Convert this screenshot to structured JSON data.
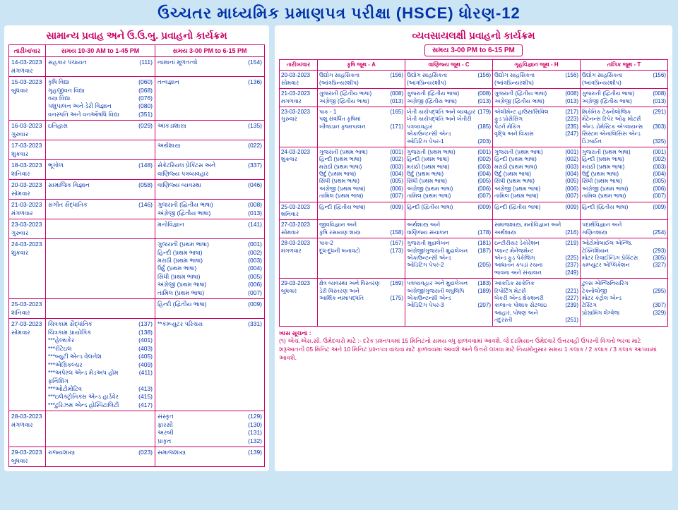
{
  "header": "ઉચ્ચતર માધ્યમિક પ્રમાણપત્ર પરીક્ષા (HSCE) ધોરણ-12",
  "left": {
    "title": "સામાન્ય પ્રવાહ અને ઉ.ઉ.બુ. પ્રવાહનો કાર્યક્રમ",
    "cols": [
      "તારીખ/વાર",
      "સમય 10-30 AM to 1-45 PM",
      "સમય 3-00 PM to 6-15 PM"
    ],
    "rows": [
      {
        "d": "14-03-2023\nમંગળવાર",
        "m": [
          [
            "સહકાર પંચાયત",
            "(111)"
          ]
        ],
        "a": [
          [
            "નામાનાં મૂળતત્વો",
            "(154)"
          ]
        ]
      },
      {
        "d": "15-03-2023\nબુધવાર",
        "m": [
          [
            "કૃષિ વિદ્યા",
            "(060)"
          ],
          [
            "ગૃહજીવન વિદ્યા",
            "(068)"
          ],
          [
            "વસ્ત્ર વિદ્યા",
            "(076)"
          ],
          [
            "પશુપાલન અને ડેરી વિજ્ઞાન",
            "(080)"
          ],
          [
            "વનસ્પતિ અને વનઔષધિ વિદ્યા",
            "(351)"
          ]
        ],
        "a": [
          [
            "તત્વજ્ઞાન",
            "(136)"
          ]
        ]
      },
      {
        "d": "16-03-2023\nગુરુવાર",
        "m": [
          [
            "ઇતિહાસ",
            "(029)"
          ]
        ],
        "a": [
          [
            "આંકડાશાસ્ત્ર",
            "(135)"
          ]
        ]
      },
      {
        "d": "17-03-2023\nશુક્રવાર",
        "m": [],
        "a": [
          [
            "અર્થશાસ્ત્ર",
            "(022)"
          ]
        ]
      },
      {
        "d": "18-03-2023\nશનિવાર",
        "m": [
          [
            "ભૂગોળ",
            "(148)"
          ]
        ],
        "a": [
          [
            "સેક્રેટરિયલ પ્રેક્ટિસ અને",
            "(337)"
          ],
          [
            "વાણિજ્ય પત્રવ્યવહાર",
            ""
          ]
        ]
      },
      {
        "d": "20-03-2023\nસોમવાર",
        "m": [
          [
            "સામાજિક વિજ્ઞાન",
            "(058)"
          ]
        ],
        "a": [
          [
            "વાણિજ્ય વ્યવસ્થા",
            "(046)"
          ]
        ]
      },
      {
        "d": "21-03-2023\nમંગળવાર",
        "m": [
          [
            "સંગીત સૈદ્ધાંતિક",
            "(146)"
          ]
        ],
        "a": [
          [
            "ગુજરાતી (દ્વિતીય ભાષા)",
            "(008)"
          ],
          [
            "અંગ્રેજી (દ્વિતીય ભાષા)",
            "(013)"
          ]
        ]
      },
      {
        "d": "23-03-2023\nગુરુવાર",
        "m": [],
        "a": [
          [
            "મનોવિજ્ઞાન",
            "(141)"
          ]
        ]
      },
      {
        "d": "24-03-2023\nશુક્રવાર",
        "m": [],
        "a": [
          [
            "ગુજરાતી  (પ્રથમ ભાષા)",
            "(001)"
          ],
          [
            "હિન્દી    (પ્રથમ ભાષા)",
            "(002)"
          ],
          [
            "મરાઠી    (પ્રથમ ભાષા)",
            "(003)"
          ],
          [
            "ઉર્દુ      (પ્રથમ ભાષા)",
            "(004)"
          ],
          [
            "સિંધી    (પ્રથમ ભાષા)",
            "(005)"
          ],
          [
            "અંગ્રેજી   (પ્રથમ ભાષા)",
            "(006)"
          ],
          [
            "તામિલ   (પ્રથમ ભાષા)",
            "(007)"
          ]
        ]
      },
      {
        "d": "25-03-2023\nશનિવાર",
        "m": [],
        "a": [
          [
            "હિન્દી    (દ્વિતીય ભાષા)",
            "(009)"
          ]
        ]
      },
      {
        "d": "27-03-2023\nસોમવાર",
        "m": [
          [
            "ચિત્રકામ સૈદ્ધાંતિક",
            "(137)"
          ],
          [
            "ચિત્રકામ પ્રાયોગિક",
            "(138)"
          ],
          [
            "***હેલ્થકેર",
            "(401)"
          ],
          [
            "***રીટેઇલ",
            "(403)"
          ],
          [
            "***બ્યુટી એન્ડ વેલનેશ",
            "(405)"
          ],
          [
            "***એગ્રિકલ્ચર",
            "(409)"
          ],
          [
            "***અપેરલ એન્ડ મેડઅપ હોમ ફર્નિશિંગ",
            "(411)"
          ],
          [
            "***ઓટોમોટિવ",
            "(413)"
          ],
          [
            "***ઇલેક્ટ્રોનિક્સ એન્ડ હાર્ડવેર",
            "(415)"
          ],
          [
            "***ટુરિઝમ એન્ડ હોસ્પિટાલિટી",
            "(417)"
          ]
        ],
        "a": [
          [
            "**કમ્પ્યુટર પરિચય",
            "(331)"
          ]
        ]
      },
      {
        "d": "28-03-2023\nમંગળવાર",
        "m": [],
        "a": [
          [
            "સંસ્કૃત",
            "(129)"
          ],
          [
            "ફારસી",
            "(130)"
          ],
          [
            "અરબી",
            "(131)"
          ],
          [
            "પ્રાકૃત",
            "(132)"
          ]
        ]
      },
      {
        "d": "29-03-2023\nબુધવાર",
        "m": [
          [
            "રાજ્યશાસ્ત્ર",
            "(023)"
          ]
        ],
        "a": [
          [
            "સમાજશાસ્ત્ર",
            "(139)"
          ]
        ]
      }
    ]
  },
  "right": {
    "title": "વ્યવસાયલક્ષી પ્રવાહનો કાર્યક્રમ",
    "time": "સમય 3-00 PM to 6-15 PM",
    "cols": [
      "તારીખ/વાર",
      "કૃષિ જૂથ - A",
      "વાણિજ્ય જૂથ - C",
      "ગૃહવિજ્ઞાન જૂથ - H",
      "તાંત્રિક જૂથ - T"
    ],
    "rows": [
      {
        "d": "20-03-2023\nસોમવાર",
        "c": [
          [
            [
              "ઉદ્યોગ સાહસિકતા",
              "(156)"
            ],
            [
              "(આંત્રપ્રિન્યરશીપ)",
              ""
            ]
          ],
          [
            [
              "ઉદ્યોગ સાહસિકતા",
              "(156)"
            ],
            [
              "(આંત્રપ્રિન્યરશીપ)",
              ""
            ]
          ],
          [
            [
              "ઉદ્યોગ સાહસિકતા",
              "(156)"
            ],
            [
              "(આંત્રપ્રિન્યરશીપ)",
              ""
            ]
          ],
          [
            [
              "ઉદ્યોગ સાહસિકતા",
              "(156)"
            ],
            [
              "(આંત્રપ્રિન્યરશીપ)",
              ""
            ]
          ]
        ]
      },
      {
        "d": "21-03-2023\nમંગળવાર",
        "c": [
          [
            [
              "ગુજરાતી (દ્વિતીય ભાષા)",
              "(008)"
            ],
            [
              "અંગ્રેજી (દ્વિતીય ભાષા)",
              "(013)"
            ]
          ],
          [
            [
              "ગુજરાતી (દ્વિતીય ભાષા)",
              "(008)"
            ],
            [
              "અંગ્રેજી (દ્વિતીય ભાષા)",
              "(013)"
            ]
          ],
          [
            [
              "ગુજરાતી (દ્વિતીય ભાષા)",
              "(008)"
            ],
            [
              "અંગ્રેજી (દ્વિતીય ભાષા)",
              "(013)"
            ]
          ],
          [
            [
              "ગુજરાતી (દ્વિતીય ભાષા)",
              "(008)"
            ],
            [
              "અંગ્રેજી (દ્વિતીય ભાષા)",
              "(013)"
            ]
          ]
        ]
      },
      {
        "d": "23-03-2023\nગુરુવાર",
        "c": [
          [
            [
              "પાક - 1",
              "(165)"
            ],
            [
              "પશુ સંવર્ધિત કૃષિમાં",
              ""
            ],
            [
              "ખીજડાન કૃષમપાલન",
              "(171)"
            ]
          ],
          [
            [
              "ખેતી કાર્યપદ્ધતિ અને વ્યવહાર",
              "(179)"
            ],
            [
              "ખેતી કાર્યપદ્ધતિ અને ખેતીરી",
              ""
            ],
            [
              "પત્રવ્યવહાર",
              "(185)"
            ],
            [
              "એકાઉન્ટન્સી એન્ડ",
              ""
            ],
            [
              "ઓડિટિંગ પેપર-1",
              "(203)"
            ]
          ],
          [
            [
              "એલીમેન્ટ હાઉસ/સિવિલ",
              "(217)"
            ],
            [
              "ફુડ પ્રોસેસિંગ",
              "(223)"
            ],
            [
              "પેટર્ન મેકિંગ",
              "(235)"
            ],
            [
              "વૃદ્ધિ અને વિકાસ",
              "(247)"
            ]
          ],
          [
            [
              "મિકેનિક ટેક્નોલોજિક",
              "(291)"
            ],
            [
              "મેટેનન્સ રિપેર ઓફ મોટર્સ",
              ""
            ],
            [
              "એન્ડ ડોમેસ્ટિક એપ્લાયન્સ",
              "(303)"
            ],
            [
              "સિસ્ટમ એનાલિસિસ એન્ડ",
              ""
            ],
            [
              "ડિઝાઈન",
              "(325)"
            ]
          ]
        ]
      },
      {
        "d": "24-03-2023\nશુક્રવાર",
        "c": [
          [
            [
              "ગુજરાતી (પ્રથમ ભાષા)",
              "(001)"
            ],
            [
              "હિન્દી (પ્રથમ ભાષા)",
              "(002)"
            ],
            [
              "મરાઠી (પ્રથમ ભાષા)",
              "(003)"
            ],
            [
              "ઉર્દુ (પ્રથમ ભાષા)",
              "(004)"
            ],
            [
              "સિંધી (પ્રથમ ભાષા)",
              "(005)"
            ],
            [
              "અંગ્રેજી (પ્રથમ ભાષા)",
              "(006)"
            ],
            [
              "તામિલ (પ્રથમ ભાષા)",
              "(007)"
            ]
          ],
          [
            [
              "ગુજરાતી (પ્રથમ ભાષા)",
              "(001)"
            ],
            [
              "હિન્દી (પ્રથમ ભાષા)",
              "(002)"
            ],
            [
              "મરાઠી (પ્રથમ ભાષા)",
              "(003)"
            ],
            [
              "ઉર્દુ (પ્રથમ ભાષા)",
              "(004)"
            ],
            [
              "સિંધી (પ્રથમ ભાષા)",
              "(005)"
            ],
            [
              "અંગ્રેજી (પ્રથમ ભાષા)",
              "(006)"
            ],
            [
              "તામિલ (પ્રથમ ભાષા)",
              "(007)"
            ]
          ],
          [
            [
              "ગુજરાતી (પ્રથમ ભાષા)",
              "(001)"
            ],
            [
              "હિન્દી (પ્રથમ ભાષા)",
              "(002)"
            ],
            [
              "મરાઠી (પ્રથમ ભાષા)",
              "(003)"
            ],
            [
              "ઉર્દુ (પ્રથમ ભાષા)",
              "(004)"
            ],
            [
              "સિંધી (પ્રથમ ભાષા)",
              "(005)"
            ],
            [
              "અંગ્રેજી (પ્રથમ ભાષા)",
              "(006)"
            ],
            [
              "તામિલ (પ્રથમ ભાષા)",
              "(007)"
            ]
          ],
          [
            [
              "ગુજરાતી (પ્રથમ ભાષા)",
              "(001)"
            ],
            [
              "હિન્દી (પ્રથમ ભાષા)",
              "(002)"
            ],
            [
              "મરાઠી (પ્રથમ ભાષા)",
              "(003)"
            ],
            [
              "ઉર્દુ (પ્રથમ ભાષા)",
              "(004)"
            ],
            [
              "સિંધી (પ્રથમ ભાષા)",
              "(005)"
            ],
            [
              "અંગ્રેજી (પ્રથમ ભાષા)",
              "(006)"
            ],
            [
              "તામિલ (પ્રથમ ભાષા)",
              "(007)"
            ]
          ]
        ]
      },
      {
        "d": "25-03-2023\nશનિવાર",
        "c": [
          [
            [
              "હિન્દી (દ્વિતીય ભાષા)",
              "(009)"
            ]
          ],
          [
            [
              "હિન્દી (દ્વિતીય ભાષા)",
              "(009)"
            ]
          ],
          [
            [
              "હિન્દી (દ્વિતીય ભાષા)",
              "(009)"
            ]
          ],
          [
            [
              "હિન્દી (દ્વિતીય ભાષા)",
              "(009)"
            ]
          ]
        ]
      },
      {
        "d": "27-03-2023\nસોમવાર",
        "c": [
          [
            [
              "જીવવિજ્ઞાન અને",
              ""
            ],
            [
              "કૃષિ રસાયણ શાસ્ત્ર",
              "(158)"
            ]
          ],
          [
            [
              "અર્થશાસ્ત્ર અને",
              ""
            ],
            [
              "વાણિજ્ય સંચાલન",
              "(178)"
            ]
          ],
          [
            [
              "સમાજશાસ્ત્ર, મનોવિજ્ઞાન અને",
              ""
            ],
            [
              "અર્થશાસ્ત્ર",
              "(216)"
            ]
          ],
          [
            [
              "પદાર્થવિજ્ઞાન અને",
              ""
            ],
            [
              "ગણિતશાસ્ત્ર",
              "(254)"
            ]
          ]
        ]
      },
      {
        "d": "28-03-2023\nમંગળવાર",
        "c": [
          [
            [
              "પાક-2",
              "(167)"
            ],
            [
              "દૂધ-દૂધની બનાવટો",
              "(173)"
            ]
          ],
          [
            [
              "ગુજરાતી મુદ્રાલેખન",
              "(181)"
            ],
            [
              "અંગ્રેજી/ગુજરાતી મુદ્રાલેખન",
              "(187)"
            ],
            [
              "એકાઉન્ટન્સી એન્ડ",
              ""
            ],
            [
              "ઓડિટિંગ પેપર-2",
              "(205)"
            ]
          ],
          [
            [
              "ઇન્ટીરીયર ડેકોરેશન",
              "(219)"
            ],
            [
              "પ્લાન્ટ મેનેજમેન્ટ",
              ""
            ],
            [
              "એન્ડ ફુડ પેકેજિંગ",
              "(225)"
            ],
            [
              "આધાતન કપડાં રચના",
              "(237)"
            ],
            [
              "ભાવના અને સંચાલન",
              "(249)"
            ]
          ],
          [
            [
              "ઓટોમોબાઈલ એન્જિ.",
              ""
            ],
            [
              "ટેક્નિશિયન",
              "(293)"
            ],
            [
              "મોટર રિવાઈન્ડિંગ પ્રેક્ટિસ",
              "(305)"
            ],
            [
              "કમ્પ્યુટર એપ્લિકેશન",
              "(327)"
            ]
          ]
        ]
      },
      {
        "d": "29-03-2023\nબુધવાર",
        "c": [
          [
            [
              "ક્ષેત્ર વ્યવસ્થા અને વિસ્તરણ",
              "(169)"
            ],
            [
              "ડેરી વિસ્તરણ અને",
              ""
            ],
            [
              "આર્થિક નામાપદ્ધતિ",
              "(175)"
            ]
          ],
          [
            [
              "પત્રવ્યવહાર અને મુદ્રાલેખન",
              "(183)"
            ],
            [
              "અંગ્રેજી/ગુજરાતી લઘુલિપિ",
              "(189)"
            ],
            [
              "એકાઉન્ટન્સી એન્ડ",
              ""
            ],
            [
              "ઓડિટિંગ પેપર-3",
              "(207)"
            ]
          ],
          [
            [
              "આંકડિક સાંકેતિક",
              ""
            ],
            [
              "રિપોર્ટિંગ મેટર્સ",
              "(221)"
            ],
            [
              "બેકરી એન્ડ ક્ષેકશનરી",
              "(227)"
            ],
            [
              "કાલાત્ક પોશાક સેટલાંઇ",
              "(239)"
            ],
            [
              "આહાર, પોષણ અને",
              ""
            ],
            [
              "તંદુરસ્તી",
              "(251)"
            ]
          ],
          [
            [
              "ટુલ્સ એન્જિનિયરિંગ",
              ""
            ],
            [
              "ટેક્નોલોજી",
              "(295)"
            ],
            [
              "મોટર કંટ્રોલ એન્ડ",
              ""
            ],
            [
              "ટેસ્ટિંગ",
              "(307)"
            ],
            [
              "પ્રોગ્રામિંગ લેંગ્વેજ",
              "(329)"
            ]
          ]
        ]
      }
    ]
  },
  "note": {
    "heading": "ખાસ સૂચના :",
    "body": "(૧) એચ.એસ.સી. ઉમેદવારો માટે :- દરેક પ્રશ્નપત્રમાં 15 મિનિટનો સમય વધુ ફાળવવામાં આવશે. જે દરમિયાન ઉમેદવારે ઉત્તરવહી ઉપરની વિગતો ભરવા માટે શરૂઆતની 05 મિનિટ અને 10 મિનિટ પ્રશ્નપત્ર વાંચવા માટે ફાળવવામાં આવશે અને ઉત્તરો લખવા માટે નિયમોનુસાર સમય 1 કલાક / 2 કલાક / 3 કલાક આપવામાં આવશે."
  }
}
